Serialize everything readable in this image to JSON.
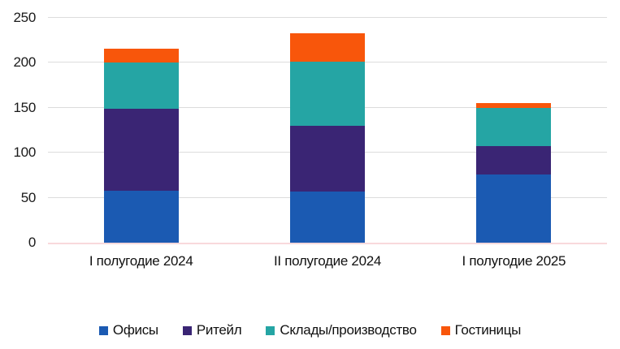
{
  "chart_data": {
    "type": "bar",
    "stacked": true,
    "categories": [
      "I полугодие 2024",
      "II полугодие 2024",
      "I полугодие 2025"
    ],
    "series": [
      {
        "name": "Офисы",
        "color": "#1B5AB2",
        "values": [
          58,
          57,
          76
        ]
      },
      {
        "name": "Ритейл",
        "color": "#3A2574",
        "values": [
          91,
          73,
          31
        ]
      },
      {
        "name": "Склады/производство",
        "color": "#25A5A4",
        "values": [
          51,
          71,
          43
        ]
      },
      {
        "name": "Гостиницы",
        "color": "#F8560B",
        "values": [
          16,
          32,
          5
        ]
      }
    ],
    "ylim": [
      0,
      250
    ],
    "yticks": [
      0,
      50,
      100,
      150,
      200,
      250
    ],
    "ytick_labels": [
      "0",
      "50",
      "100",
      "150",
      "200",
      "250"
    ],
    "grid": true,
    "legend_position": "bottom",
    "colors": {
      "gridline": "#DCDCDC",
      "zero_line": "#F9D9DC",
      "text": "#1a1a1a",
      "background": "#ffffff"
    }
  }
}
